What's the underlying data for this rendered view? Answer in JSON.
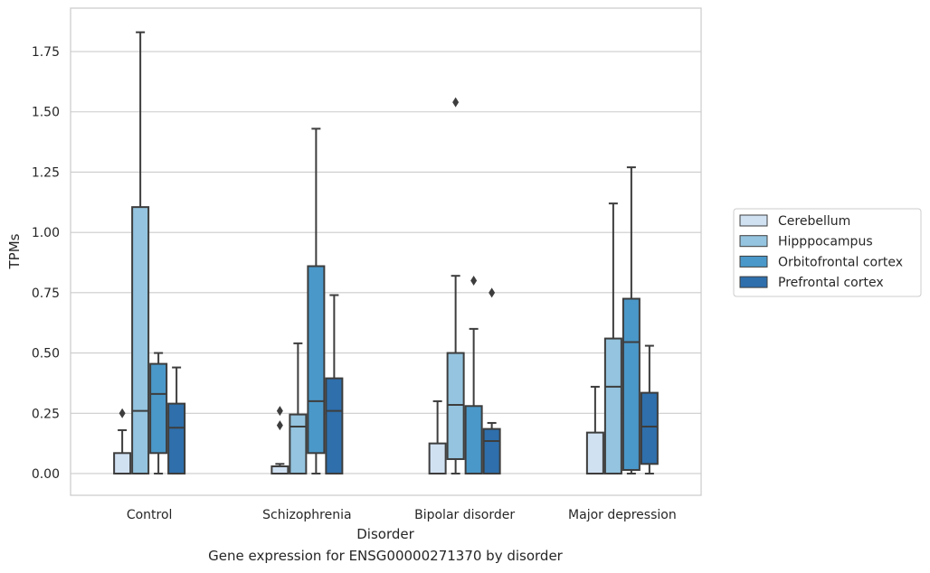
{
  "caption": "Gene expression for ENSG00000271370 by disorder",
  "chart_data": {
    "type": "boxplot",
    "xlabel": "Disorder",
    "ylabel": "TPMs",
    "ylim": [
      -0.09,
      1.93
    ],
    "yticks": [
      0.0,
      0.25,
      0.5,
      0.75,
      1.0,
      1.25,
      1.5,
      1.75
    ],
    "ytick_labels": [
      "0.00",
      "0.25",
      "0.50",
      "0.75",
      "1.00",
      "1.25",
      "1.50",
      "1.75"
    ],
    "grid": "horizontal",
    "legend_position": "right",
    "categories": [
      "Control",
      "Schizophrenia",
      "Bipolar disorder",
      "Major depression"
    ],
    "series": [
      {
        "name": "Cerebellum",
        "color": "#d0e1f2",
        "boxes": [
          {
            "whislo": 0.0,
            "q1": 0.0,
            "med": 0.0,
            "q3": 0.085,
            "whishi": 0.18,
            "fliers": [
              0.25
            ]
          },
          {
            "whislo": 0.0,
            "q1": 0.0,
            "med": 0.0,
            "q3": 0.03,
            "whishi": 0.04,
            "fliers": [
              0.2,
              0.26
            ]
          },
          {
            "whislo": 0.0,
            "q1": 0.0,
            "med": 0.0,
            "q3": 0.125,
            "whishi": 0.3,
            "fliers": []
          },
          {
            "whislo": 0.0,
            "q1": 0.0,
            "med": 0.0,
            "q3": 0.17,
            "whishi": 0.36,
            "fliers": []
          }
        ]
      },
      {
        "name": "Hipppocampus",
        "color": "#94c4df",
        "boxes": [
          {
            "whislo": 0.0,
            "q1": 0.0,
            "med": 0.26,
            "q3": 1.105,
            "whishi": 1.83,
            "fliers": []
          },
          {
            "whislo": 0.0,
            "q1": 0.0,
            "med": 0.195,
            "q3": 0.245,
            "whishi": 0.54,
            "fliers": []
          },
          {
            "whislo": 0.0,
            "q1": 0.06,
            "med": 0.285,
            "q3": 0.5,
            "whishi": 0.82,
            "fliers": [
              1.54
            ]
          },
          {
            "whislo": 0.0,
            "q1": 0.0,
            "med": 0.36,
            "q3": 0.56,
            "whishi": 1.12,
            "fliers": []
          }
        ]
      },
      {
        "name": "Orbitofrontal cortex",
        "color": "#4a98c9",
        "boxes": [
          {
            "whislo": 0.0,
            "q1": 0.085,
            "med": 0.33,
            "q3": 0.455,
            "whishi": 0.5,
            "fliers": []
          },
          {
            "whislo": 0.0,
            "q1": 0.085,
            "med": 0.3,
            "q3": 0.86,
            "whishi": 1.43,
            "fliers": []
          },
          {
            "whislo": 0.0,
            "q1": 0.0,
            "med": 0.0,
            "q3": 0.28,
            "whishi": 0.6,
            "fliers": [
              0.8
            ]
          },
          {
            "whislo": 0.0,
            "q1": 0.015,
            "med": 0.545,
            "q3": 0.725,
            "whishi": 1.27,
            "fliers": []
          }
        ]
      },
      {
        "name": "Prefrontal cortex",
        "color": "#2e6fac",
        "boxes": [
          {
            "whislo": 0.0,
            "q1": 0.0,
            "med": 0.19,
            "q3": 0.29,
            "whishi": 0.44,
            "fliers": []
          },
          {
            "whislo": 0.0,
            "q1": 0.0,
            "med": 0.26,
            "q3": 0.395,
            "whishi": 0.74,
            "fliers": []
          },
          {
            "whislo": 0.0,
            "q1": 0.0,
            "med": 0.135,
            "q3": 0.185,
            "whishi": 0.21,
            "fliers": [
              0.75
            ]
          },
          {
            "whislo": 0.0,
            "q1": 0.04,
            "med": 0.195,
            "q3": 0.335,
            "whishi": 0.53,
            "fliers": []
          }
        ]
      }
    ]
  }
}
